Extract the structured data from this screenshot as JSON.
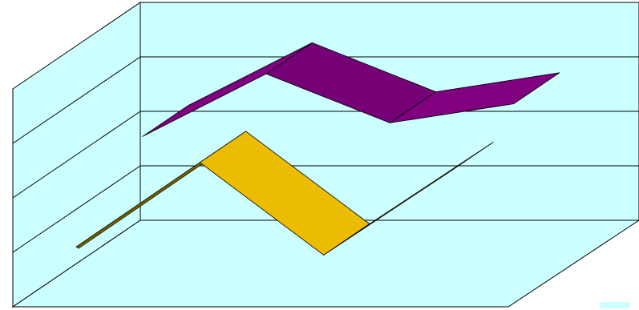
{
  "chart_data": {
    "type": "line",
    "subtype": "3d-ribbon",
    "title": "",
    "xlabel": "",
    "ylabel": "",
    "categories": [
      "",
      "",
      "",
      ""
    ],
    "ylim": [
      0,
      4
    ],
    "grid": true,
    "legend": "none",
    "series": [
      {
        "values": [
          2.3,
          3.45,
          2.55,
          2.9
        ],
        "color": "#800080"
      },
      {
        "values": [
          1.1,
          2.65,
          0.95,
          2.45
        ],
        "color": "#FFCC00"
      }
    ]
  },
  "colors": {
    "wall": "#CCFFFF",
    "floor": "#CCFFFF",
    "edge": "#000000",
    "corner_swatch": "#CCFFFF"
  }
}
